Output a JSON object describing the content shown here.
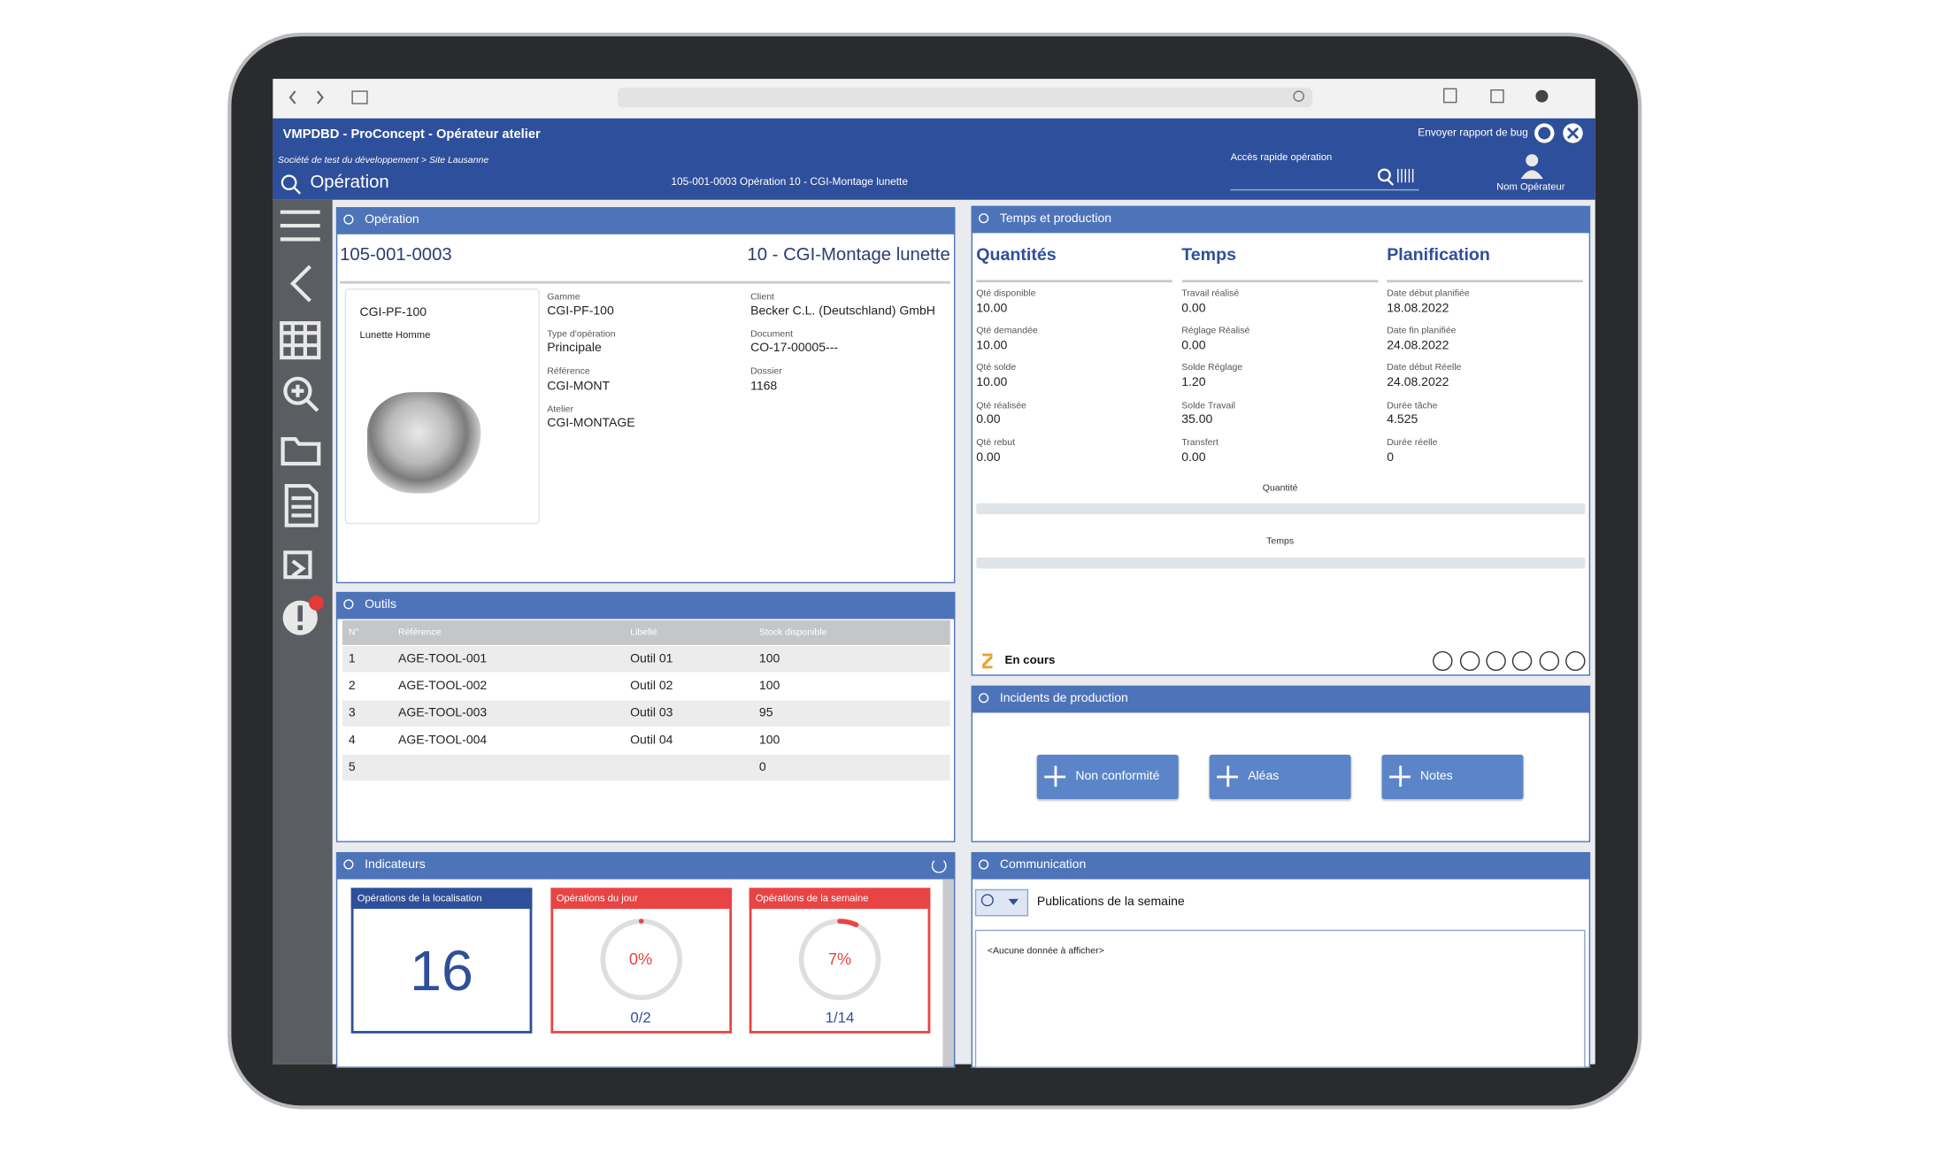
{
  "app": {
    "title": "VMPDBD - ProConcept - Opérateur atelier",
    "subtitle": "Société de test du développement > Site Lausanne",
    "page": "Opération",
    "breadcrumb": "105-001-0003 Opération 10 - CGI-Montage lunette",
    "bug_report": "Envoyer rapport de bug",
    "quick_access": "Accès rapide opération",
    "user": "Nom Opérateur"
  },
  "operation": {
    "panel": "Opération",
    "number": "105-001-0003",
    "name": "10 - CGI-Montage lunette",
    "article": "CGI-PF-100",
    "article_desc": "Lunette Homme",
    "fields_left": [
      {
        "label": "Gamme",
        "value": "CGI-PF-100"
      },
      {
        "label": "Type d'opération",
        "value": "Principale"
      },
      {
        "label": "Référence",
        "value": "CGI-MONT"
      },
      {
        "label": "Atelier",
        "value": "CGI-MONTAGE"
      }
    ],
    "fields_right": [
      {
        "label": "Client",
        "value": "Becker C.L. (Deutschland) GmbH"
      },
      {
        "label": "Document",
        "value": "CO-17-00005---"
      },
      {
        "label": "Dossier",
        "value": "1168"
      }
    ]
  },
  "time_production": {
    "panel": "Temps et production",
    "columns": [
      {
        "title": "Quantités",
        "fields": [
          {
            "label": "Qté disponible",
            "value": "10.00"
          },
          {
            "label": "Qté demandée",
            "value": "10.00"
          },
          {
            "label": "Qté solde",
            "value": "10.00"
          },
          {
            "label": "Qté réalisée",
            "value": "0.00"
          },
          {
            "label": "Qté rebut",
            "value": "0.00"
          }
        ]
      },
      {
        "title": "Temps",
        "fields": [
          {
            "label": "Travail réalisé",
            "value": "0.00"
          },
          {
            "label": "Réglage Réalisé",
            "value": "0.00"
          },
          {
            "label": "Solde Réglage",
            "value": "1.20"
          },
          {
            "label": "Solde Travail",
            "value": "35.00"
          },
          {
            "label": "Transfert",
            "value": "0.00"
          }
        ]
      },
      {
        "title": "Planification",
        "fields": [
          {
            "label": "Date début planifiée",
            "value": "18.08.2022"
          },
          {
            "label": "Date fin planifiée",
            "value": "24.08.2022"
          },
          {
            "label": "Date début Réelle",
            "value": "24.08.2022"
          },
          {
            "label": "Durée tâche",
            "value": "4.525"
          },
          {
            "label": "Durée réelle",
            "value": "0"
          }
        ]
      }
    ],
    "bars": [
      "Quantité",
      "Temps"
    ],
    "status": "En cours"
  },
  "tools": {
    "panel": "Outils",
    "headers": [
      "N°",
      "Référence",
      "Libellé",
      "Stock disponible"
    ],
    "rows": [
      {
        "no": "1",
        "ref": "AGE-TOOL-001",
        "label": "Outil 01",
        "stock": "100"
      },
      {
        "no": "2",
        "ref": "AGE-TOOL-002",
        "label": "Outil 02",
        "stock": "100"
      },
      {
        "no": "3",
        "ref": "AGE-TOOL-003",
        "label": "Outil 03",
        "stock": "95"
      },
      {
        "no": "4",
        "ref": "AGE-TOOL-004",
        "label": "Outil 04",
        "stock": "100"
      },
      {
        "no": "5",
        "stock": "0"
      }
    ]
  },
  "incidents": {
    "panel": "Incidents de production",
    "buttons": [
      "Non conformité",
      "Aléas",
      "Notes"
    ]
  },
  "indicators": {
    "panel": "Indicateurs",
    "cards": [
      {
        "title": "Opérations de la localisation",
        "value": "16"
      },
      {
        "title": "Opérations du jour",
        "percent": 0,
        "value_label": "0%",
        "ratio": "0/2"
      },
      {
        "title": "Opérations de la semaine",
        "percent": 7,
        "value_label": "7%",
        "ratio": "1/14"
      }
    ]
  },
  "communication": {
    "panel": "Communication",
    "filter": "Publications de la semaine",
    "empty": "<Aucune donnée à afficher>"
  }
}
